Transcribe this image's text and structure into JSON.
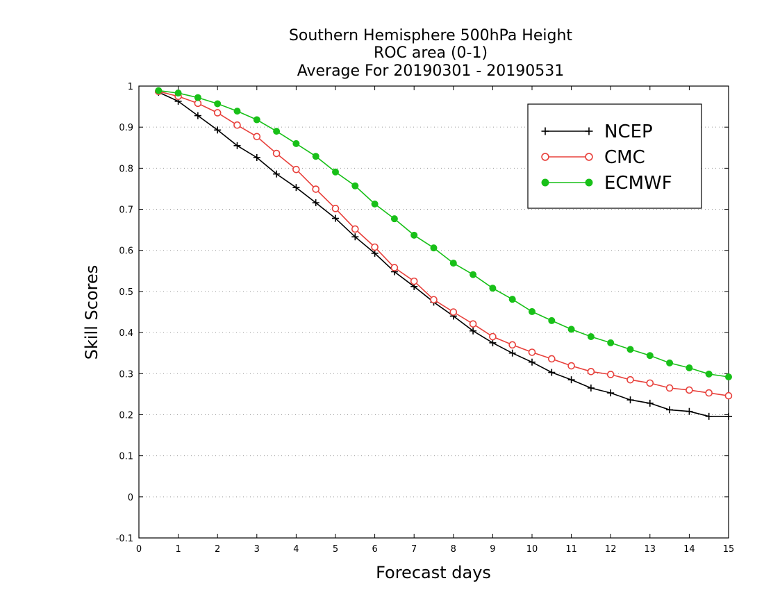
{
  "chart_data": {
    "type": "line",
    "title": [
      "Southern Hemisphere 500hPa Height",
      "ROC area (0-1)",
      "Average For 20190301 - 20190531"
    ],
    "xlabel": "Forecast days",
    "ylabel": "Skill Scores",
    "xlim": [
      0,
      15
    ],
    "ylim": [
      -0.1,
      1
    ],
    "xticks": [
      "0",
      "1",
      "2",
      "3",
      "4",
      "5",
      "6",
      "7",
      "8",
      "9",
      "10",
      "11",
      "12",
      "13",
      "14",
      "15"
    ],
    "yticks": [
      "-0.1",
      "0",
      "0.1",
      "0.2",
      "0.3",
      "0.4",
      "0.5",
      "0.6",
      "0.7",
      "0.8",
      "0.9",
      "1"
    ],
    "grid": "horizontal dotted",
    "legend_position": "top-right",
    "x": [
      0.5,
      1,
      1.5,
      2,
      2.5,
      3,
      3.5,
      4,
      4.5,
      5,
      5.5,
      6,
      6.5,
      7,
      7.5,
      8,
      8.5,
      9,
      9.5,
      10,
      10.5,
      11,
      11.5,
      12,
      12.5,
      13,
      13.5,
      14,
      14.5,
      15
    ],
    "series": [
      {
        "name": "NCEP",
        "color": "#000000",
        "marker": "plus",
        "values": [
          0.985,
          0.963,
          0.928,
          0.893,
          0.855,
          0.826,
          0.786,
          0.753,
          0.716,
          0.678,
          0.633,
          0.593,
          0.548,
          0.512,
          0.474,
          0.44,
          0.404,
          0.375,
          0.35,
          0.328,
          0.303,
          0.285,
          0.265,
          0.253,
          0.236,
          0.228,
          0.212,
          0.208,
          0.196,
          0.196
        ]
      },
      {
        "name": "CMC",
        "color": "#e8413c",
        "marker": "open-circle",
        "values": [
          0.987,
          0.975,
          0.958,
          0.935,
          0.905,
          0.877,
          0.836,
          0.797,
          0.749,
          0.702,
          0.652,
          0.608,
          0.558,
          0.525,
          0.48,
          0.45,
          0.421,
          0.39,
          0.37,
          0.352,
          0.336,
          0.319,
          0.305,
          0.298,
          0.285,
          0.277,
          0.265,
          0.26,
          0.253,
          0.246
        ]
      },
      {
        "name": "ECMWF",
        "color": "#18c018",
        "marker": "filled-circle",
        "values": [
          0.989,
          0.983,
          0.972,
          0.957,
          0.939,
          0.918,
          0.89,
          0.86,
          0.829,
          0.791,
          0.757,
          0.713,
          0.677,
          0.637,
          0.606,
          0.569,
          0.541,
          0.508,
          0.481,
          0.451,
          0.429,
          0.408,
          0.39,
          0.375,
          0.359,
          0.344,
          0.326,
          0.314,
          0.299,
          0.292
        ]
      }
    ]
  }
}
